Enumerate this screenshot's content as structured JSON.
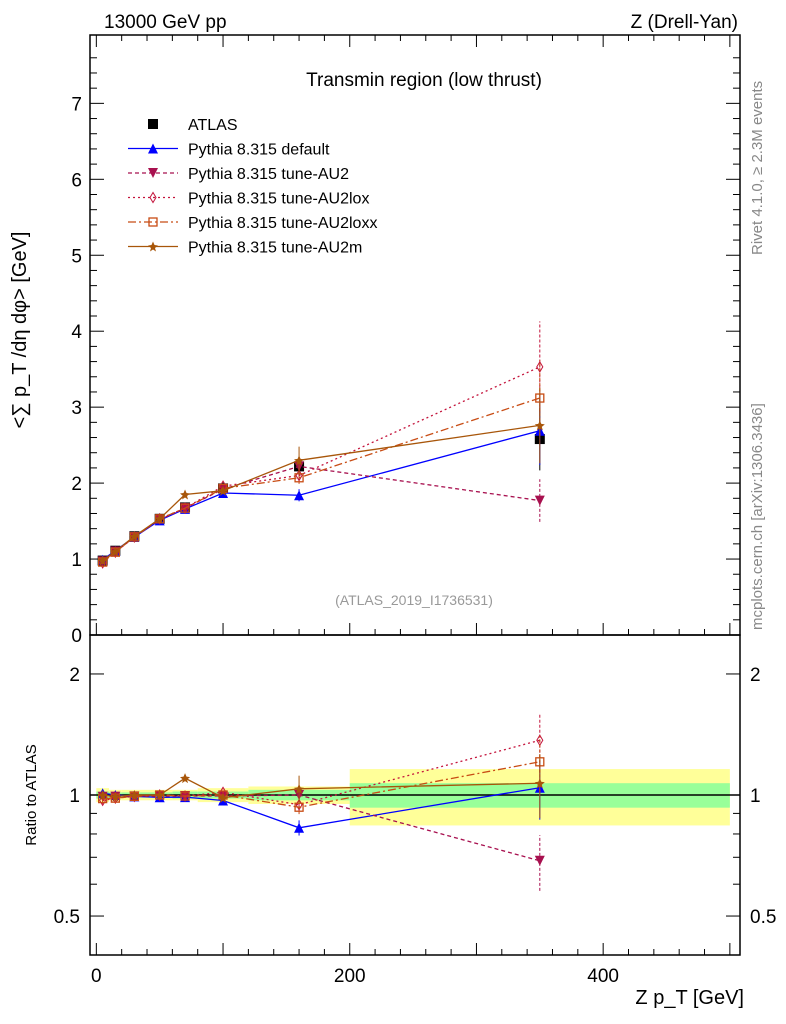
{
  "header": {
    "left": "13000 GeV pp",
    "right": "Z (Drell-Yan)"
  },
  "side": {
    "rivet": "Rivet 4.1.0, ≥ 2.3M events",
    "mcplots": "mcplots.cern.ch [arXiv:1306.3436]"
  },
  "chart_data": {
    "type": "line",
    "title": "Transmin region (low thrust)",
    "analysis": "(ATLAS_2019_I1736531)",
    "xlabel": "Z p_T [GeV]",
    "ylabel": "<∑ p_T /dη dφ> [GeV]",
    "ratio_ylabel": "Ratio to ATLAS",
    "xlim": [
      -5,
      508
    ],
    "ylim": [
      0,
      7.9
    ],
    "ratio_ylim": [
      0.4,
      2.5
    ],
    "xticks": [
      0,
      200,
      400
    ],
    "yticks": [
      0,
      1,
      2,
      3,
      4,
      5,
      6,
      7
    ],
    "ratio_yticks": [
      0.5,
      1,
      2
    ],
    "x": [
      5,
      15,
      30,
      50,
      70,
      100,
      160,
      350
    ],
    "bins": [
      [
        0,
        10
      ],
      [
        10,
        20
      ],
      [
        20,
        40
      ],
      [
        40,
        60
      ],
      [
        60,
        80
      ],
      [
        80,
        120
      ],
      [
        120,
        200
      ],
      [
        200,
        500
      ]
    ],
    "data": {
      "name": "ATLAS",
      "color": "#000000",
      "values": [
        0.98,
        1.11,
        1.3,
        1.53,
        1.68,
        1.93,
        2.22,
        2.58
      ],
      "stat_rel": [
        0.02,
        0.015,
        0.015,
        0.015,
        0.02,
        0.02,
        0.03,
        0.07
      ],
      "tot_rel": [
        0.04,
        0.03,
        0.03,
        0.03,
        0.03,
        0.04,
        0.05,
        0.16
      ]
    },
    "series": [
      {
        "name": "Pythia 8.315 default",
        "color": "#0000ff",
        "marker": "triangle-up",
        "dash": "",
        "values": [
          0.99,
          1.11,
          1.29,
          1.51,
          1.66,
          1.87,
          1.84,
          2.69
        ],
        "yerr": [
          0.02,
          0.02,
          0.02,
          0.02,
          0.03,
          0.03,
          0.08,
          0.45
        ]
      },
      {
        "name": "Pythia 8.315 tune-AU2",
        "color": "#a8104f",
        "marker": "triangle-down",
        "dash": "4,3",
        "values": [
          0.97,
          1.1,
          1.29,
          1.52,
          1.67,
          1.92,
          2.22,
          1.77
        ],
        "yerr": [
          0.02,
          0.02,
          0.02,
          0.02,
          0.03,
          0.03,
          0.08,
          0.28
        ]
      },
      {
        "name": "Pythia 8.315 tune-AU2lox",
        "color": "#c4143c",
        "marker": "diamond",
        "dash": "2,3",
        "values": [
          0.95,
          1.09,
          1.29,
          1.53,
          1.67,
          1.96,
          2.1,
          3.53
        ],
        "yerr": [
          0.02,
          0.02,
          0.02,
          0.02,
          0.03,
          0.03,
          0.08,
          0.6
        ]
      },
      {
        "name": "Pythia 8.315 tune-AU2loxx",
        "color": "#c84c14",
        "marker": "square-open",
        "dash": "8,3,2,3",
        "values": [
          0.96,
          1.09,
          1.29,
          1.53,
          1.67,
          1.93,
          2.07,
          3.12
        ],
        "yerr": [
          0.02,
          0.02,
          0.02,
          0.02,
          0.03,
          0.03,
          0.08,
          0.5
        ]
      },
      {
        "name": "Pythia 8.315 tune-AU2m",
        "color": "#a8560a",
        "marker": "star",
        "dash": "",
        "values": [
          0.98,
          1.1,
          1.3,
          1.53,
          1.85,
          1.9,
          2.3,
          2.76
        ],
        "yerr": [
          0.02,
          0.02,
          0.02,
          0.02,
          0.03,
          0.03,
          0.18,
          0.5
        ]
      }
    ]
  }
}
